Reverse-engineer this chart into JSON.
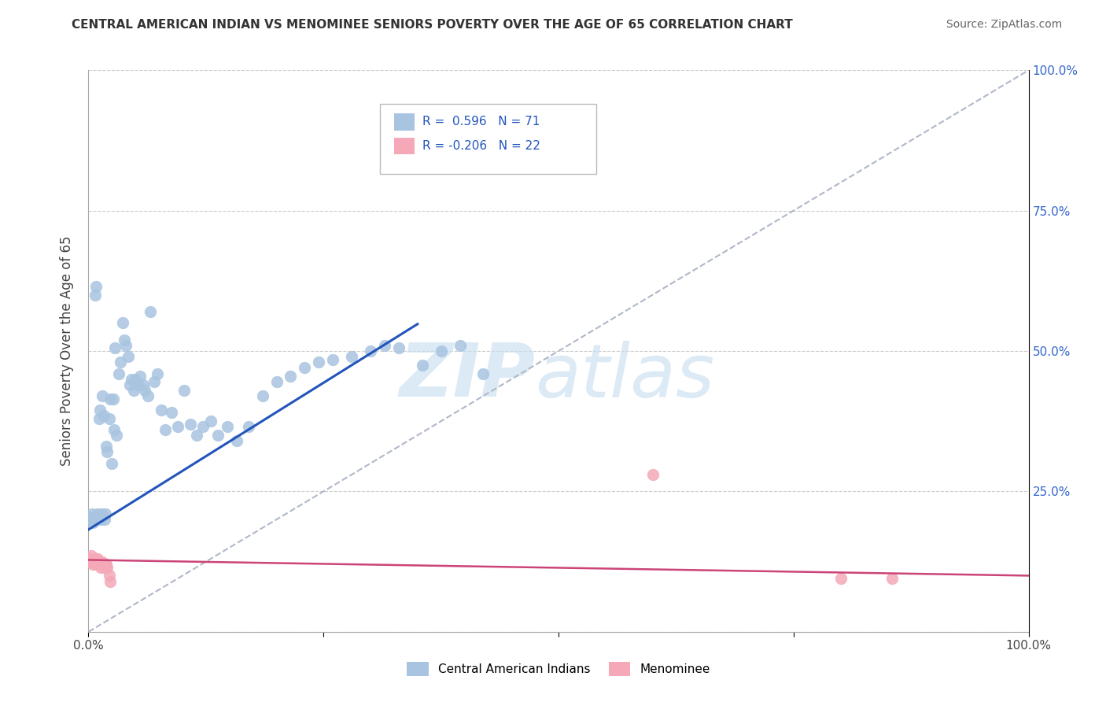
{
  "title": "CENTRAL AMERICAN INDIAN VS MENOMINEE SENIORS POVERTY OVER THE AGE OF 65 CORRELATION CHART",
  "source": "Source: ZipAtlas.com",
  "ylabel_label": "Seniors Poverty Over the Age of 65",
  "legend_labels": [
    "Central American Indians",
    "Menominee"
  ],
  "r_blue": 0.596,
  "n_blue": 71,
  "r_pink": -0.206,
  "n_pink": 22,
  "blue_color": "#a8c4e0",
  "pink_color": "#f4a8b8",
  "blue_line_color": "#2255bb",
  "pink_line_color": "#cc4477",
  "blue_scatter": [
    [
      0.0,
      0.205
    ],
    [
      0.003,
      0.2
    ],
    [
      0.004,
      0.21
    ],
    [
      0.005,
      0.195
    ],
    [
      0.006,
      0.205
    ],
    [
      0.007,
      0.6
    ],
    [
      0.008,
      0.615
    ],
    [
      0.009,
      0.2
    ],
    [
      0.01,
      0.21
    ],
    [
      0.011,
      0.38
    ],
    [
      0.012,
      0.395
    ],
    [
      0.013,
      0.2
    ],
    [
      0.014,
      0.21
    ],
    [
      0.015,
      0.42
    ],
    [
      0.016,
      0.385
    ],
    [
      0.017,
      0.2
    ],
    [
      0.018,
      0.21
    ],
    [
      0.019,
      0.33
    ],
    [
      0.02,
      0.32
    ],
    [
      0.022,
      0.38
    ],
    [
      0.023,
      0.415
    ],
    [
      0.025,
      0.3
    ],
    [
      0.026,
      0.415
    ],
    [
      0.027,
      0.36
    ],
    [
      0.028,
      0.505
    ],
    [
      0.03,
      0.35
    ],
    [
      0.032,
      0.46
    ],
    [
      0.034,
      0.48
    ],
    [
      0.036,
      0.55
    ],
    [
      0.038,
      0.52
    ],
    [
      0.04,
      0.51
    ],
    [
      0.042,
      0.49
    ],
    [
      0.044,
      0.44
    ],
    [
      0.046,
      0.45
    ],
    [
      0.048,
      0.43
    ],
    [
      0.05,
      0.45
    ],
    [
      0.052,
      0.44
    ],
    [
      0.055,
      0.455
    ],
    [
      0.058,
      0.44
    ],
    [
      0.06,
      0.43
    ],
    [
      0.063,
      0.42
    ],
    [
      0.066,
      0.57
    ],
    [
      0.07,
      0.445
    ],
    [
      0.073,
      0.46
    ],
    [
      0.077,
      0.395
    ],
    [
      0.082,
      0.36
    ],
    [
      0.088,
      0.39
    ],
    [
      0.095,
      0.365
    ],
    [
      0.102,
      0.43
    ],
    [
      0.108,
      0.37
    ],
    [
      0.115,
      0.35
    ],
    [
      0.122,
      0.365
    ],
    [
      0.13,
      0.375
    ],
    [
      0.138,
      0.35
    ],
    [
      0.148,
      0.365
    ],
    [
      0.158,
      0.34
    ],
    [
      0.17,
      0.365
    ],
    [
      0.185,
      0.42
    ],
    [
      0.2,
      0.445
    ],
    [
      0.215,
      0.455
    ],
    [
      0.23,
      0.47
    ],
    [
      0.245,
      0.48
    ],
    [
      0.26,
      0.485
    ],
    [
      0.28,
      0.49
    ],
    [
      0.3,
      0.5
    ],
    [
      0.315,
      0.51
    ],
    [
      0.33,
      0.505
    ],
    [
      0.355,
      0.475
    ],
    [
      0.375,
      0.5
    ],
    [
      0.395,
      0.51
    ],
    [
      0.42,
      0.46
    ]
  ],
  "pink_scatter": [
    [
      0.0,
      0.13
    ],
    [
      0.002,
      0.125
    ],
    [
      0.003,
      0.135
    ],
    [
      0.005,
      0.12
    ],
    [
      0.006,
      0.125
    ],
    [
      0.007,
      0.13
    ],
    [
      0.008,
      0.12
    ],
    [
      0.009,
      0.125
    ],
    [
      0.01,
      0.13
    ],
    [
      0.012,
      0.125
    ],
    [
      0.013,
      0.115
    ],
    [
      0.014,
      0.12
    ],
    [
      0.015,
      0.125
    ],
    [
      0.017,
      0.115
    ],
    [
      0.018,
      0.12
    ],
    [
      0.019,
      0.12
    ],
    [
      0.02,
      0.115
    ],
    [
      0.022,
      0.1
    ],
    [
      0.023,
      0.09
    ],
    [
      0.6,
      0.28
    ],
    [
      0.8,
      0.095
    ],
    [
      0.855,
      0.095
    ]
  ],
  "blue_line": [
    [
      0.0,
      0.182
    ],
    [
      0.35,
      0.548
    ]
  ],
  "pink_line": [
    [
      0.0,
      0.128
    ],
    [
      1.0,
      0.1
    ]
  ],
  "diag_line": [
    [
      0.0,
      0.0
    ],
    [
      1.0,
      1.0
    ]
  ],
  "xlim": [
    0.0,
    1.0
  ],
  "ylim": [
    0.0,
    1.0
  ],
  "grid_yticks": [
    0.0,
    0.25,
    0.5,
    0.75,
    1.0
  ],
  "right_ytick_labels": [
    "",
    "25.0%",
    "50.0%",
    "75.0%",
    "100.0%"
  ],
  "xtick_vals": [
    0.0,
    0.25,
    0.5,
    0.75,
    1.0
  ],
  "xtick_labels": [
    "0.0%",
    "",
    "",
    "",
    "100.0%"
  ]
}
